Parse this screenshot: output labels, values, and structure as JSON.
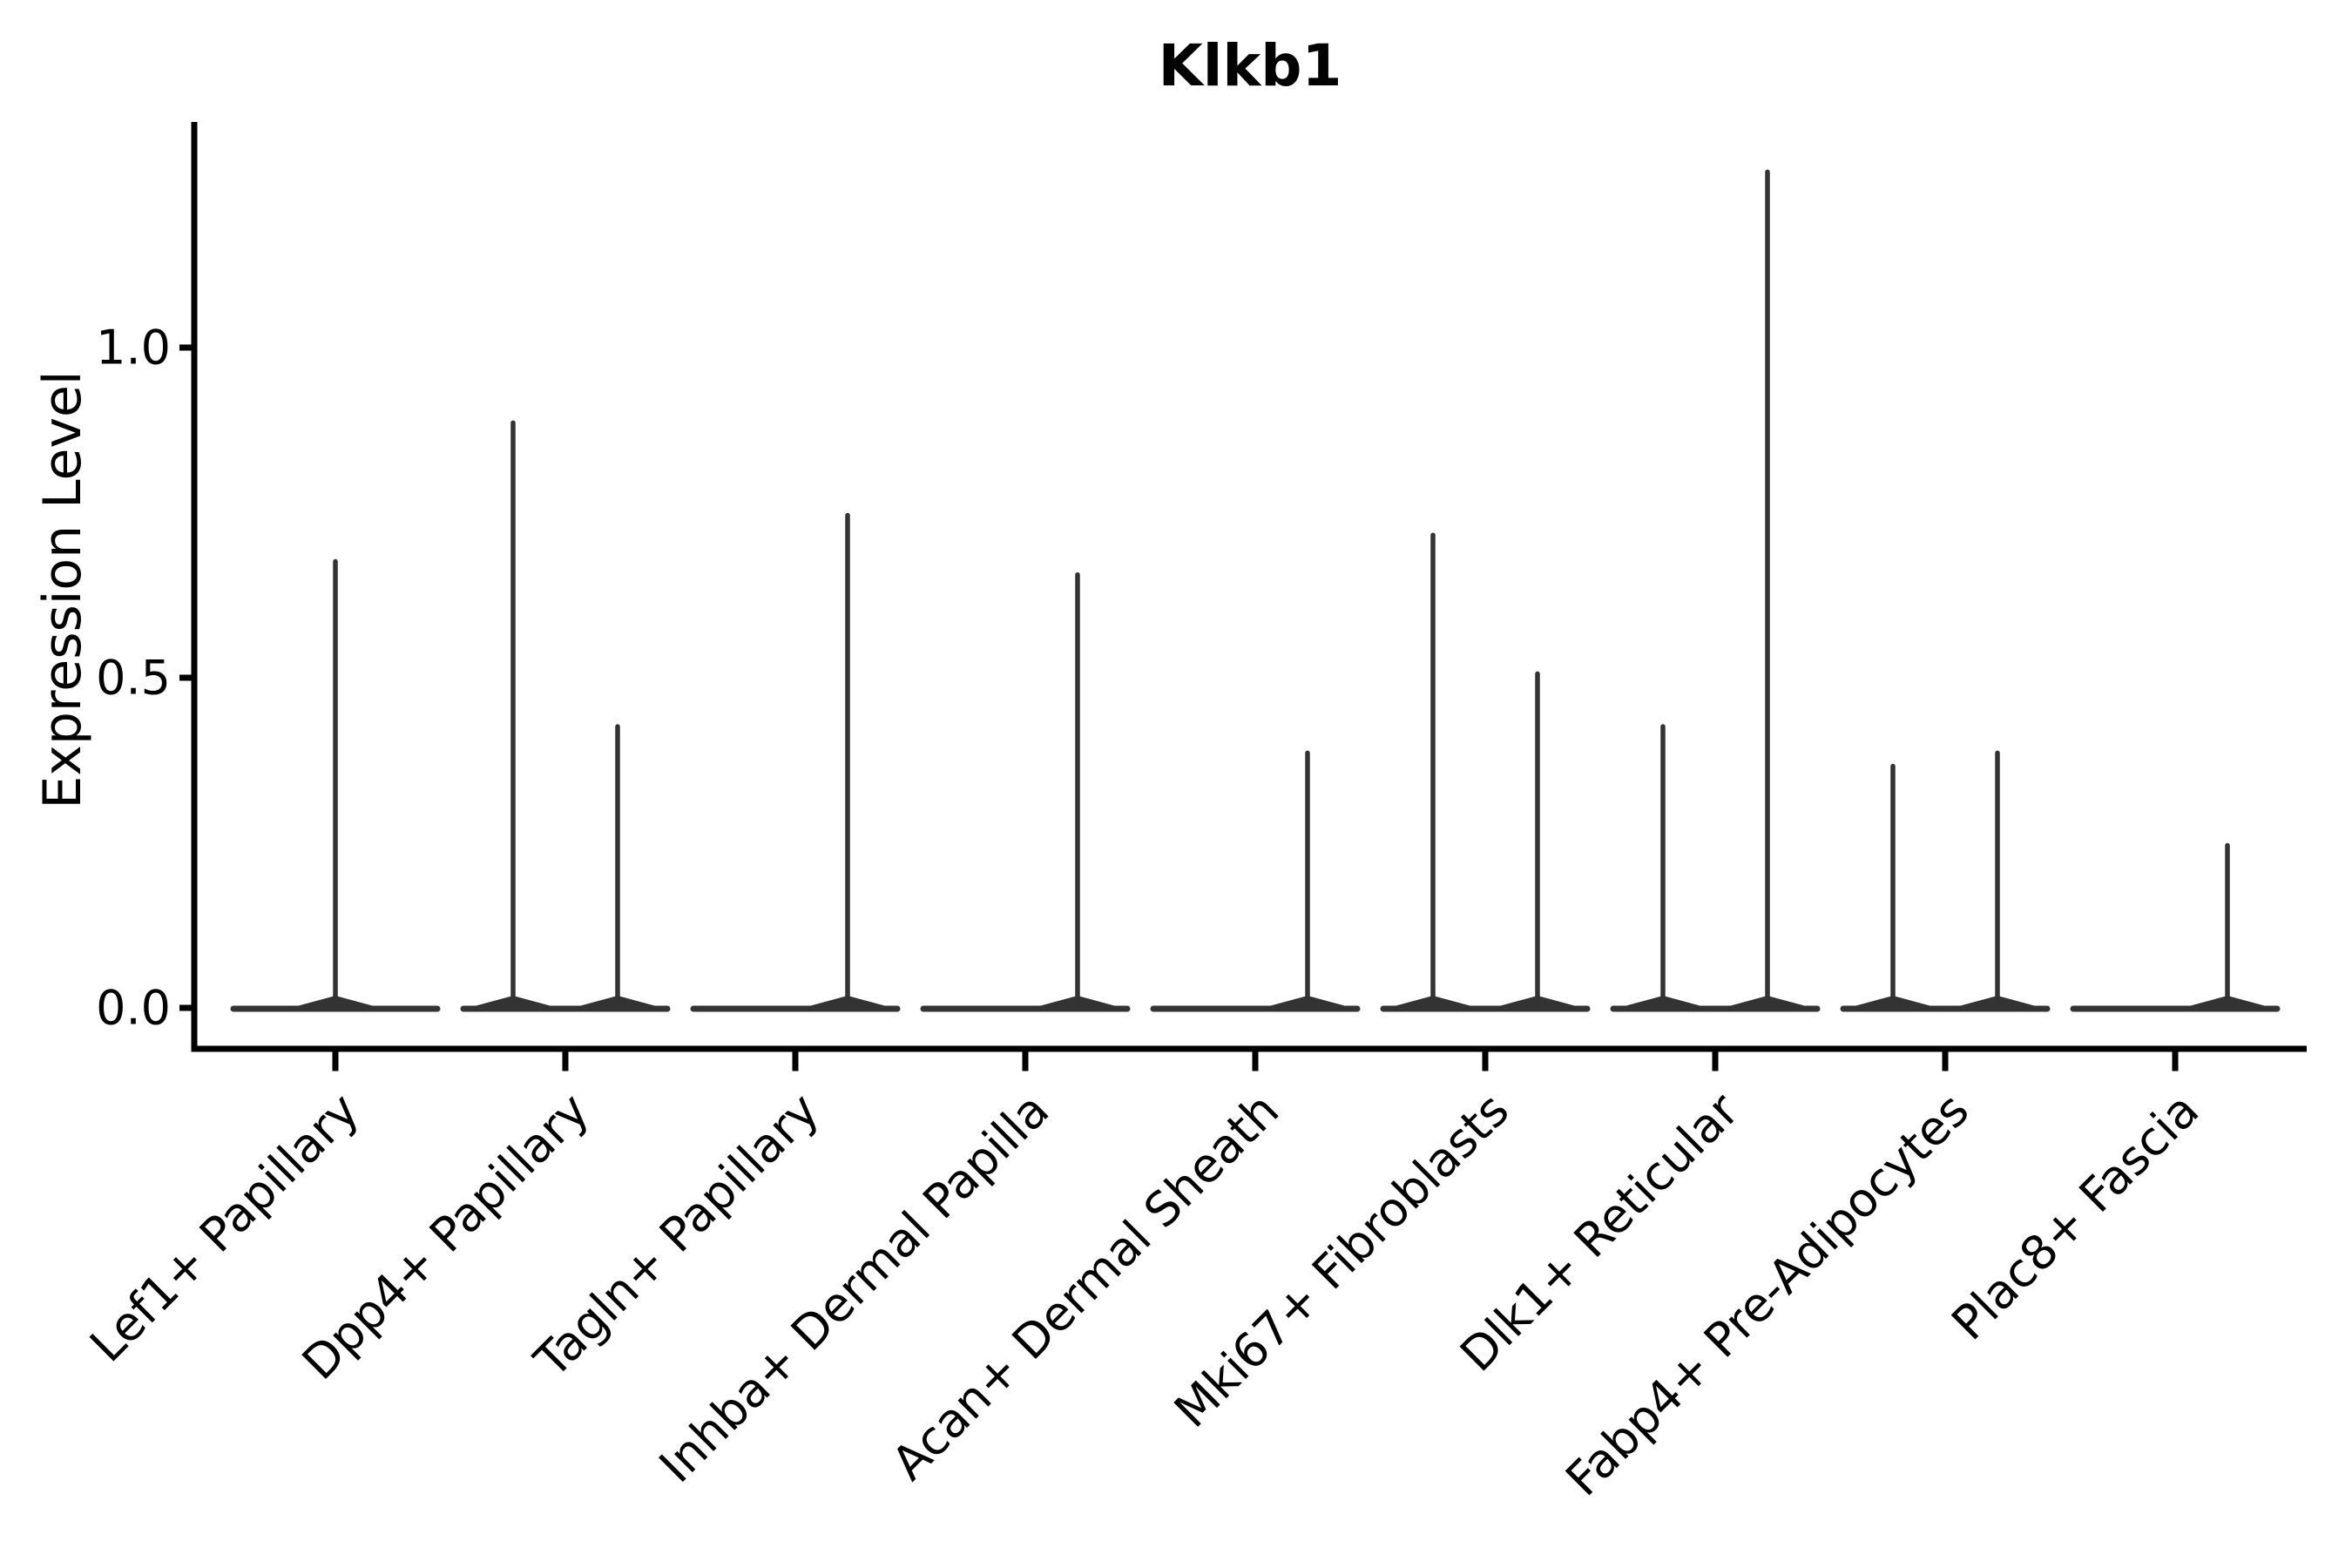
{
  "chart_data": {
    "type": "violin",
    "title": "Klkb1",
    "xlabel": "",
    "ylabel": "Expression Level",
    "ylim": [
      -0.06,
      1.34
    ],
    "yticks": {
      "values": [
        0.0,
        0.5,
        1.0
      ],
      "labels": [
        "0.0",
        "0.5",
        "1.0"
      ]
    },
    "grid": false,
    "legend": null,
    "categories": [
      "Lef1+ Papillary",
      "Dpp4+ Papillary",
      "Tagln+ Papillary",
      "Inhba+ Dermal Papilla",
      "Acan+ Dermal Sheath",
      "Mki67+ Fibroblasts",
      "Dlk1+ Reticular",
      "Fabp4+ Pre-Adipocytes",
      "Plac8+ Fascia"
    ],
    "baseline_value": 0.0,
    "violins": [
      {
        "category": "Lef1+ Papillary",
        "spikes": [
          {
            "x_offset_frac": 0.0,
            "max_expression": 0.68
          }
        ]
      },
      {
        "category": "Dpp4+ Papillary",
        "spikes": [
          {
            "x_offset_frac": -0.227,
            "max_expression": 0.89
          },
          {
            "x_offset_frac": 0.227,
            "max_expression": 0.43
          }
        ]
      },
      {
        "category": "Tagln+ Papillary",
        "spikes": [
          {
            "x_offset_frac": 0.227,
            "max_expression": 0.75
          }
        ]
      },
      {
        "category": "Inhba+ Dermal Papilla",
        "spikes": [
          {
            "x_offset_frac": 0.227,
            "max_expression": 0.66
          }
        ]
      },
      {
        "category": "Acan+ Dermal Sheath",
        "spikes": [
          {
            "x_offset_frac": 0.227,
            "max_expression": 0.39
          }
        ]
      },
      {
        "category": "Mki67+ Fibroblasts",
        "spikes": [
          {
            "x_offset_frac": -0.227,
            "max_expression": 0.72
          },
          {
            "x_offset_frac": 0.227,
            "max_expression": 0.51
          }
        ]
      },
      {
        "category": "Dlk1+ Reticular",
        "spikes": [
          {
            "x_offset_frac": -0.227,
            "max_expression": 0.43
          },
          {
            "x_offset_frac": 0.227,
            "max_expression": 1.27
          }
        ]
      },
      {
        "category": "Fabp4+ Pre-Adipocytes",
        "spikes": [
          {
            "x_offset_frac": -0.227,
            "max_expression": 0.37
          },
          {
            "x_offset_frac": 0.227,
            "max_expression": 0.39
          }
        ]
      },
      {
        "category": "Plac8+ Fascia",
        "spikes": [
          {
            "x_offset_frac": 0.227,
            "max_expression": 0.25
          }
        ]
      }
    ],
    "colors": {
      "violin_stroke": "#333333",
      "axis": "#000000",
      "text": "#000000",
      "background": "#ffffff"
    }
  }
}
